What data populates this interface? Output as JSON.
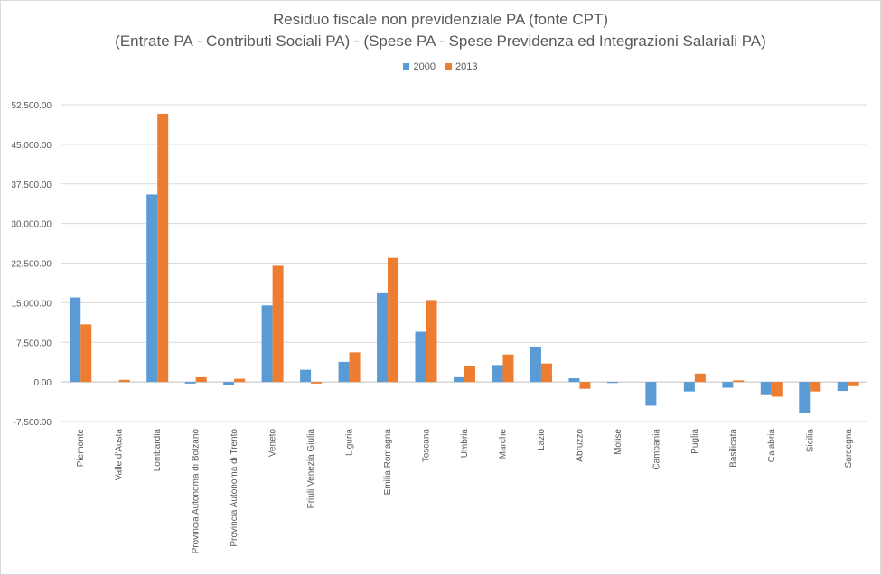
{
  "chart_data": {
    "type": "bar",
    "title": "Residuo fiscale non previdenziale PA (fonte CPT)",
    "subtitle": "(Entrate PA - Contributi Sociali PA) - (Spese PA - Spese Previdenza ed Integrazioni Salariali PA)",
    "xlabel": "",
    "ylabel": "",
    "ylim": [
      -7500,
      52500
    ],
    "yticks": [
      -7500,
      0,
      7500,
      15000,
      22500,
      30000,
      37500,
      45000,
      52500
    ],
    "ytick_labels": [
      "-7,500.00",
      "0.00",
      "7,500.00",
      "15,000.00",
      "22,500.00",
      "30,000.00",
      "37,500.00",
      "45,000.00",
      "52,500.00"
    ],
    "grid": true,
    "legend_position": "top",
    "categories": [
      "Piemonte",
      "Valle d'Aosta",
      "Lombardia",
      "Provincia Autonoma di Bolzano",
      "Provincia Autonoma di Trento",
      "Veneto",
      "Friuli Venezia Giulia",
      "Liguria",
      "Emilia Romagna",
      "Toscana",
      "Umbria",
      "Marche",
      "Lazio",
      "Abruzzo",
      "Molise",
      "Campania",
      "Puglia",
      "Basilicata",
      "Calabria",
      "Sicilia",
      "Sardegna"
    ],
    "series": [
      {
        "name": "2000",
        "color": "#5b9bd5",
        "values": [
          16000,
          0,
          35500,
          -300,
          -500,
          14500,
          2300,
          3800,
          16800,
          9500,
          900,
          3200,
          6700,
          700,
          -200,
          -4500,
          -1800,
          -1100,
          -2500,
          -5800,
          -1700
        ]
      },
      {
        "name": "2013",
        "color": "#ed7d31",
        "values": [
          10900,
          400,
          50800,
          900,
          600,
          22000,
          -300,
          5600,
          23500,
          15500,
          3000,
          5200,
          3500,
          -1300,
          0,
          0,
          1600,
          300,
          -2800,
          -1800,
          -800
        ]
      }
    ]
  }
}
